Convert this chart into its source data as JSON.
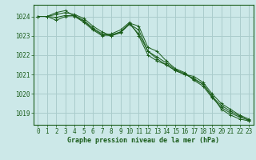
{
  "background_color": "#cce8e8",
  "plot_bg_color": "#cce8e8",
  "grid_color": "#aacccc",
  "line_color": "#1a5c1a",
  "xlabel": "Graphe pression niveau de la mer (hPa)",
  "xlabel_fontsize": 6.0,
  "tick_fontsize": 5.5,
  "xlim": [
    -0.5,
    23.5
  ],
  "ylim": [
    1018.4,
    1024.6
  ],
  "yticks": [
    1019,
    1020,
    1021,
    1022,
    1023,
    1024
  ],
  "xticks": [
    0,
    1,
    2,
    3,
    4,
    5,
    6,
    7,
    8,
    9,
    10,
    11,
    12,
    13,
    14,
    15,
    16,
    17,
    18,
    19,
    20,
    21,
    22,
    23
  ],
  "series": [
    {
      "x": [
        0,
        1,
        2,
        3,
        4,
        5,
        6,
        7,
        8,
        9,
        10,
        11,
        12,
        13,
        14,
        15,
        16,
        17,
        18,
        19,
        20,
        21,
        22,
        23
      ],
      "y": [
        1024.0,
        1024.0,
        1024.1,
        1024.2,
        1024.1,
        1023.9,
        1023.5,
        1023.2,
        1023.0,
        1023.2,
        1023.6,
        1023.1,
        1022.2,
        1021.8,
        1021.5,
        1021.2,
        1021.0,
        1020.8,
        1020.5,
        1019.9,
        1019.2,
        1018.9,
        1018.7,
        1018.6
      ]
    },
    {
      "x": [
        0,
        1,
        2,
        3,
        4,
        5,
        6,
        7,
        8,
        9,
        10,
        11,
        12,
        13,
        14,
        15,
        16,
        17,
        18,
        19,
        20,
        21,
        22,
        23
      ],
      "y": [
        1024.0,
        1024.0,
        1024.2,
        1024.3,
        1024.0,
        1023.7,
        1023.3,
        1023.0,
        1023.1,
        1023.3,
        1023.7,
        1023.0,
        1022.0,
        1021.7,
        1021.5,
        1021.2,
        1021.0,
        1020.9,
        1020.6,
        1020.0,
        1019.5,
        1019.2,
        1018.9,
        1018.7
      ]
    },
    {
      "x": [
        0,
        1,
        2,
        3,
        4,
        5,
        6,
        7,
        8,
        9,
        10,
        11,
        12,
        13,
        14,
        15,
        16,
        17,
        18,
        19,
        20,
        21,
        22,
        23
      ],
      "y": [
        1024.0,
        1024.0,
        1023.8,
        1024.0,
        1024.05,
        1023.8,
        1023.4,
        1023.1,
        1023.05,
        1023.2,
        1023.65,
        1023.5,
        1022.4,
        1022.2,
        1021.7,
        1021.3,
        1021.1,
        1020.7,
        1020.4,
        1019.8,
        1019.3,
        1019.0,
        1018.8,
        1018.65
      ]
    },
    {
      "x": [
        0,
        1,
        2,
        3,
        4,
        5,
        6,
        7,
        8,
        9,
        10,
        11,
        12,
        13,
        14,
        15,
        16,
        17,
        18,
        19,
        20,
        21,
        22,
        23
      ],
      "y": [
        1024.0,
        1024.0,
        1023.95,
        1024.05,
        1024.02,
        1023.75,
        1023.35,
        1023.05,
        1023.0,
        1023.15,
        1023.6,
        1023.3,
        1022.2,
        1021.9,
        1021.6,
        1021.25,
        1021.05,
        1020.75,
        1020.5,
        1019.85,
        1019.4,
        1019.1,
        1018.85,
        1018.62
      ]
    }
  ]
}
